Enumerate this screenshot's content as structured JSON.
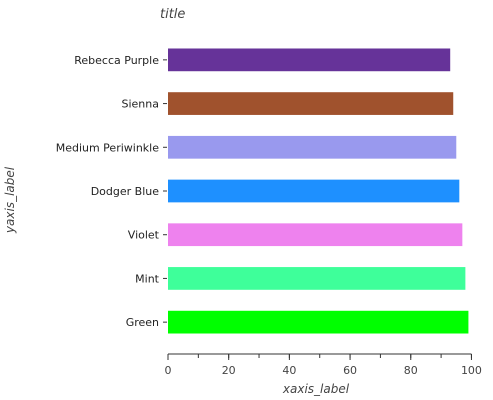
{
  "chart_data": {
    "type": "bar",
    "orientation": "horizontal",
    "title": "title",
    "xlabel": "xaxis_label",
    "ylabel": "yaxis_label",
    "xlim": [
      0,
      100
    ],
    "xticks": [
      0,
      20,
      40,
      60,
      80,
      100
    ],
    "grid": false,
    "categories": [
      "Green",
      "Mint",
      "Violet",
      "Dodger Blue",
      "Medium Periwinkle",
      "Sienna",
      "Rebecca Purple"
    ],
    "values": [
      99,
      98,
      97,
      96,
      95,
      94,
      93
    ],
    "colors": [
      "#00ff00",
      "#3eff9a",
      "#ee82ee",
      "#1e90ff",
      "#9999ee",
      "#a0522d",
      "#663399"
    ]
  }
}
